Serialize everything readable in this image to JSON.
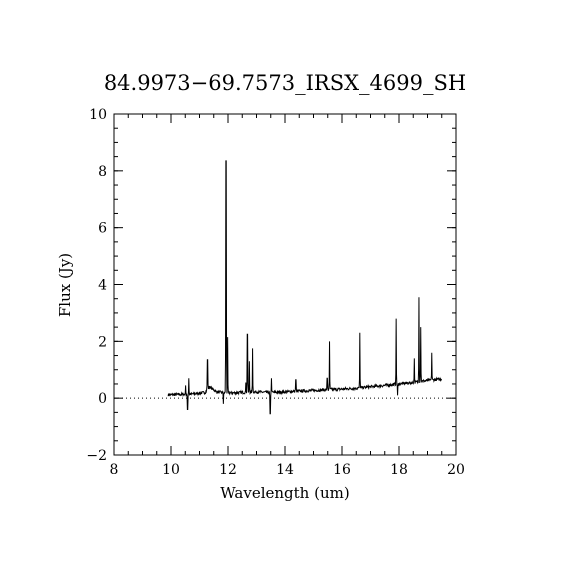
{
  "chart_data": {
    "type": "line",
    "title": "84.9973−69.7573_IRSX_4699_SH",
    "xlabel": "Wavelength (um)",
    "ylabel": "Flux (Jy)",
    "xlim": [
      8,
      20
    ],
    "ylim": [
      -2,
      10
    ],
    "x_ticks": [
      8,
      10,
      12,
      14,
      16,
      18,
      20
    ],
    "y_ticks": [
      -2,
      0,
      2,
      4,
      6,
      8,
      10
    ],
    "x_tick_labels": [
      "8",
      "10",
      "12",
      "14",
      "16",
      "18",
      "20"
    ],
    "y_tick_labels": [
      "−2",
      "0",
      "2",
      "4",
      "6",
      "8",
      "10"
    ],
    "x_minor_step": 0.5,
    "y_minor_step": 0.5,
    "zero_line": true,
    "grid": false,
    "series": [
      {
        "continuum": {
          "x": [
            9.9,
            10.3,
            10.8,
            11.2,
            11.35,
            11.6,
            12.0,
            12.5,
            13.0,
            13.5,
            14.0,
            14.5,
            15.0,
            15.5,
            16.0,
            16.5,
            17.0,
            17.5,
            18.0,
            18.5,
            19.0,
            19.5
          ],
          "y": [
            0.12,
            0.13,
            0.15,
            0.2,
            0.4,
            0.22,
            0.18,
            0.2,
            0.22,
            0.2,
            0.22,
            0.25,
            0.27,
            0.3,
            0.32,
            0.35,
            0.4,
            0.45,
            0.5,
            0.55,
            0.62,
            0.68
          ]
        },
        "lines": [
          {
            "x": 10.51,
            "peak": 0.45
          },
          {
            "x": 10.58,
            "peak": -0.4
          },
          {
            "x": 10.62,
            "peak": 0.7
          },
          {
            "x": 11.28,
            "peak": 1.35
          },
          {
            "x": 11.84,
            "peak": -0.2
          },
          {
            "x": 11.93,
            "peak": 8.35
          },
          {
            "x": 11.99,
            "peak": 2.15
          },
          {
            "x": 12.62,
            "peak": 0.55
          },
          {
            "x": 12.68,
            "peak": 2.25
          },
          {
            "x": 12.75,
            "peak": 1.3
          },
          {
            "x": 12.86,
            "peak": 1.75
          },
          {
            "x": 13.48,
            "peak": -0.55
          },
          {
            "x": 13.52,
            "peak": 0.7
          },
          {
            "x": 14.38,
            "peak": 0.65
          },
          {
            "x": 15.48,
            "peak": 0.7
          },
          {
            "x": 15.56,
            "peak": 2.0
          },
          {
            "x": 16.62,
            "peak": 2.3
          },
          {
            "x": 17.9,
            "peak": 2.8
          },
          {
            "x": 17.95,
            "peak": 0.1
          },
          {
            "x": 18.54,
            "peak": 1.4
          },
          {
            "x": 18.7,
            "peak": 3.55
          },
          {
            "x": 18.76,
            "peak": 2.5
          },
          {
            "x": 19.15,
            "peak": 1.6
          }
        ],
        "noise_amplitude": 0.05
      }
    ]
  }
}
